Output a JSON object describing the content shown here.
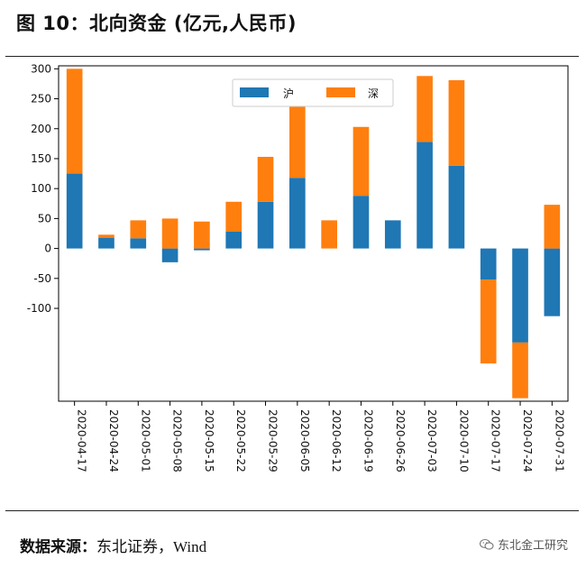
{
  "title": "图 10：北向资金 (亿元,人民币)",
  "source": {
    "label": "数据来源：",
    "text": "东北证券，Wind"
  },
  "watermark": {
    "text": "东北金工研究",
    "icon": "wechat-icon"
  },
  "colors": {
    "sh": "#1f77b4",
    "sz": "#ff7f0e"
  },
  "chart_data": {
    "type": "bar",
    "stacked": true,
    "categories": [
      "2020-04-17",
      "2020-04-24",
      "2020-05-01",
      "2020-05-08",
      "2020-05-15",
      "2020-05-22",
      "2020-05-29",
      "2020-06-05",
      "2020-06-12",
      "2020-06-19",
      "2020-06-26",
      "2020-07-03",
      "2020-07-10",
      "2020-07-17",
      "2020-07-24",
      "2020-07-31"
    ],
    "series": [
      {
        "name": "沪",
        "color": "#1f77b4",
        "values": [
          125,
          18,
          17,
          -23,
          -3,
          28,
          78,
          118,
          0,
          88,
          47,
          178,
          138,
          -52,
          -157,
          -113
        ]
      },
      {
        "name": "深",
        "color": "#ff7f0e",
        "values": [
          175,
          5,
          30,
          50,
          45,
          50,
          75,
          122,
          47,
          115,
          0,
          110,
          143,
          -140,
          -93,
          73
        ]
      }
    ],
    "yticks": [
      300,
      250,
      200,
      150,
      100,
      50,
      0,
      -50,
      -100
    ],
    "ylim": [
      -255,
      305
    ],
    "legend": "top-center",
    "grid": false
  }
}
